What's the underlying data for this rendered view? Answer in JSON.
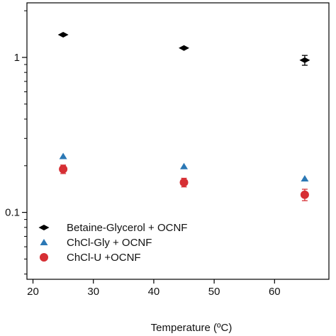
{
  "chart_data": {
    "type": "scatter",
    "xlabel": "Temperature (ºC)",
    "ylabel": "",
    "xlim": [
      19,
      69
    ],
    "ylim": [
      0.037,
      2.25
    ],
    "yscale": "log",
    "grid": false,
    "legend_position": "bottom-left",
    "xticks": [
      20,
      30,
      40,
      50,
      60
    ],
    "x_tick_labels": [
      "20",
      "30",
      "40",
      "50",
      "60"
    ],
    "yticks": [
      0.1,
      1
    ],
    "y_tick_labels": [
      "0.1",
      "1"
    ],
    "series": [
      {
        "name": "Betaine-Glycerol + OCNF",
        "marker": "diamond",
        "color": "#000000",
        "points": [
          {
            "x": 25,
            "y": 1.4,
            "err": 0.0
          },
          {
            "x": 45,
            "y": 1.15,
            "err": 0.0
          },
          {
            "x": 65,
            "y": 0.96,
            "err": 0.07
          }
        ]
      },
      {
        "name": "ChCl-Gly + OCNF",
        "marker": "triangle",
        "color": "#2b78b5",
        "points": [
          {
            "x": 25,
            "y": 0.23,
            "err": 0.0
          },
          {
            "x": 45,
            "y": 0.198,
            "err": 0.0
          },
          {
            "x": 65,
            "y": 0.165,
            "err": 0.0
          }
        ]
      },
      {
        "name": "ChCl-U +OCNF",
        "marker": "circle",
        "color": "#d62f34",
        "points": [
          {
            "x": 25,
            "y": 0.19,
            "err": 0.012
          },
          {
            "x": 45,
            "y": 0.156,
            "err": 0.01
          },
          {
            "x": 65,
            "y": 0.13,
            "err": 0.011
          }
        ]
      }
    ]
  }
}
